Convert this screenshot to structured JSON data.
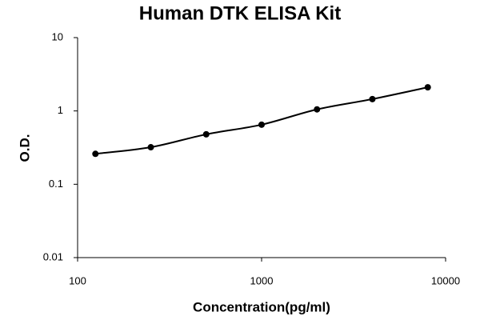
{
  "chart_data": {
    "type": "scatter",
    "title": "Human DTK ELISA Kit",
    "x_label": "Concentration(pg/ml)",
    "y_label": "O.D.",
    "x": [
      125,
      250,
      500,
      1000,
      2000,
      4000,
      8000
    ],
    "values": [
      0.26,
      0.32,
      0.48,
      0.65,
      1.05,
      1.45,
      2.1
    ],
    "color": "#000000",
    "fit_line": true,
    "xlog": true,
    "ylog": true,
    "xlim": [
      100,
      10000
    ],
    "xticks": [
      100,
      1000,
      10000
    ],
    "ylim": [
      0.01,
      10
    ],
    "yticks": [
      0.01,
      0.1,
      1,
      10
    ],
    "grid": false
  }
}
